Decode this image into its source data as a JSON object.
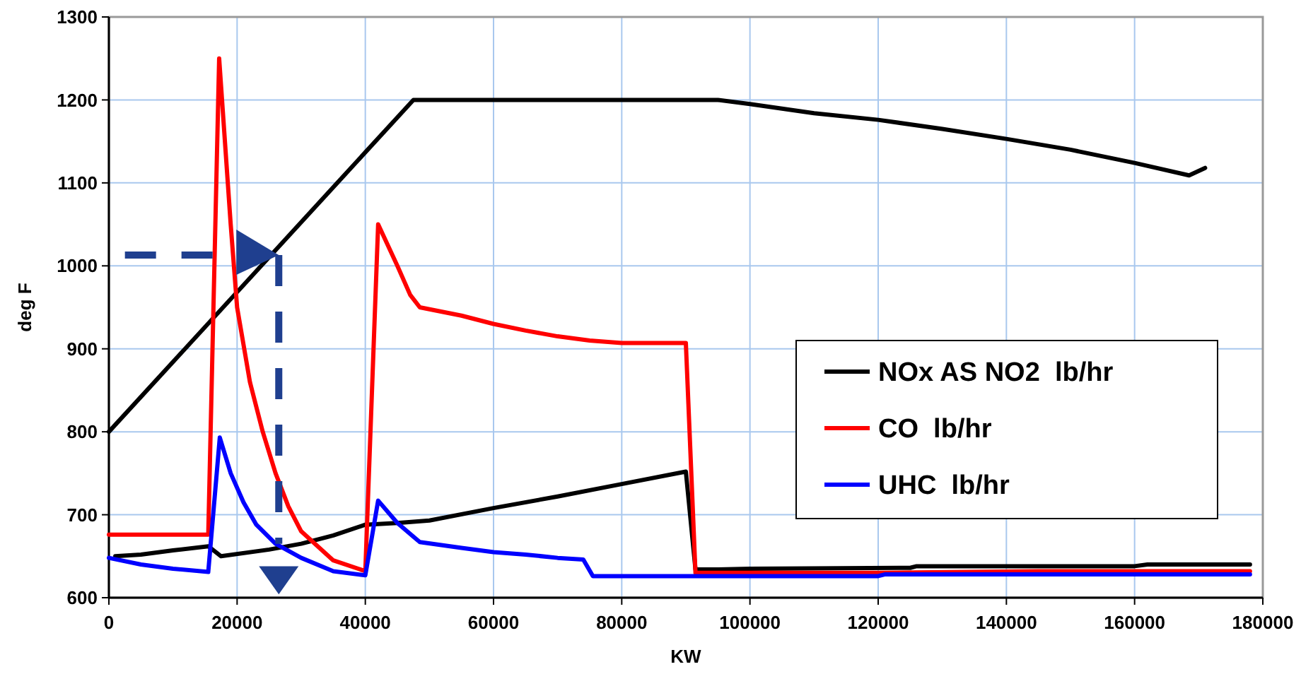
{
  "chart_data": {
    "type": "line",
    "xlabel": "KW",
    "ylabel": "deg F",
    "xlim": [
      0,
      180000
    ],
    "ylim": [
      600,
      1300
    ],
    "xticks": [
      0,
      20000,
      40000,
      60000,
      80000,
      100000,
      120000,
      140000,
      160000,
      180000
    ],
    "yticks": [
      600,
      700,
      800,
      900,
      1000,
      1100,
      1200,
      1300
    ],
    "grid": true,
    "legend": "bottom right",
    "line_style": "solid",
    "series": [
      {
        "color": "#000000",
        "x": [
          0,
          47500,
          95000,
          100000,
          110000,
          120000,
          130000,
          140000,
          150000,
          160000,
          168500,
          171000
        ],
        "values": [
          800,
          1200,
          1200,
          1195,
          1184,
          1176,
          1165,
          1153,
          1140,
          1124,
          1109,
          1118
        ]
      },
      {
        "name": "NOx AS NO2  lb/hr",
        "color": "#000000",
        "x": [
          1000,
          5000,
          10000,
          15500,
          17500,
          25000,
          30000,
          35000,
          40000,
          45000,
          50000,
          60000,
          70000,
          80000,
          90000,
          91500,
          95000,
          100000,
          125000,
          126000,
          160000,
          162000,
          178000
        ],
        "values": [
          650,
          652,
          657,
          662,
          650,
          658,
          665,
          675,
          688,
          690,
          693,
          708,
          722,
          737,
          752,
          634,
          634,
          635,
          636,
          638,
          638,
          640,
          640
        ]
      },
      {
        "name": "CO  lb/hr",
        "color": "#ff0000",
        "x": [
          0,
          15500,
          17200,
          19000,
          20000,
          22000,
          24000,
          26000,
          28000,
          30000,
          35000,
          40000,
          42000,
          45000,
          47000,
          48500,
          55000,
          60000,
          65000,
          70000,
          75000,
          80000,
          90000,
          91500,
          120000,
          145000,
          178000
        ],
        "values": [
          676,
          676,
          1250,
          1050,
          950,
          860,
          800,
          750,
          710,
          680,
          645,
          632,
          1050,
          1000,
          965,
          950,
          940,
          930,
          922,
          915,
          910,
          907,
          907,
          630,
          630,
          632,
          632
        ]
      },
      {
        "name": "UHC  lb/hr",
        "color": "#0000ff",
        "x": [
          0,
          5000,
          10000,
          15500,
          17300,
          19000,
          21000,
          23000,
          26000,
          30000,
          35000,
          40000,
          42000,
          45000,
          48500,
          55000,
          60000,
          65000,
          70000,
          74000,
          75500,
          120000,
          121000,
          178000
        ],
        "values": [
          648,
          640,
          635,
          631,
          793,
          750,
          715,
          688,
          665,
          648,
          632,
          627,
          717,
          690,
          667,
          660,
          655,
          652,
          648,
          646,
          626,
          626,
          628,
          628
        ]
      }
    ]
  }
}
